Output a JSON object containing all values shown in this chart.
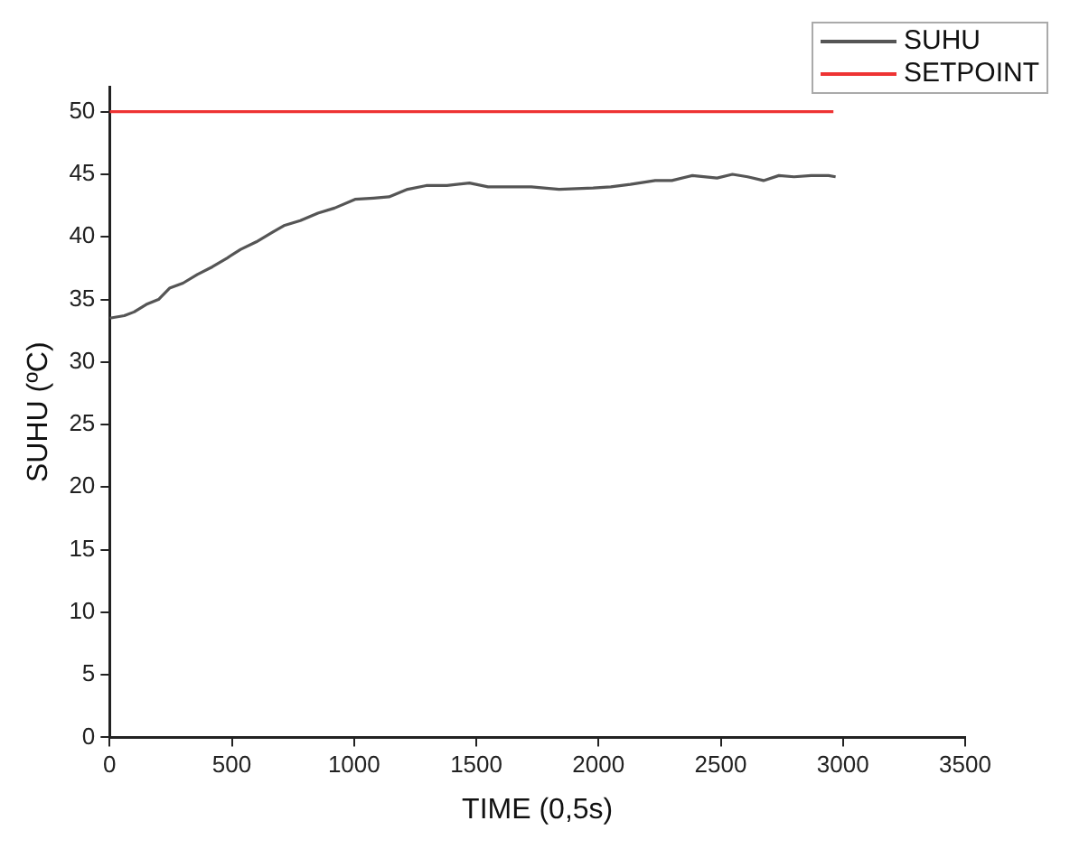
{
  "chart_data": {
    "type": "line",
    "xlabel": "TIME (0,5s)",
    "ylabel": "SUHU (ºC)",
    "xlim": [
      0,
      3500
    ],
    "xticks": [
      0,
      500,
      1000,
      1500,
      2000,
      2500,
      3000,
      3500
    ],
    "ylim": [
      0,
      52
    ],
    "yticks": [
      0,
      5,
      10,
      15,
      20,
      25,
      30,
      35,
      40,
      45,
      50
    ],
    "grid": false,
    "legend": "top right",
    "marker": "none",
    "line_style": "solid",
    "series": [
      {
        "name": "SUHU",
        "color": "#555555",
        "x": [
          0,
          60,
          100,
          150,
          200,
          245,
          300,
          359,
          420,
          480,
          536,
          600,
          660,
          713,
          780,
          852,
          920,
          1004,
          1080,
          1143,
          1219,
          1295,
          1380,
          1472,
          1548,
          1640,
          1725,
          1839,
          1978,
          2050,
          2130,
          2232,
          2300,
          2384,
          2485,
          2548,
          2610,
          2675,
          2738,
          2800,
          2870,
          2941,
          2970
        ],
        "values": [
          33.5,
          33.7,
          34.0,
          34.6,
          35.0,
          35.9,
          36.3,
          37.0,
          37.6,
          38.3,
          39.0,
          39.6,
          40.3,
          40.9,
          41.3,
          41.9,
          42.3,
          43.0,
          43.1,
          43.2,
          43.8,
          44.1,
          44.1,
          44.3,
          44.0,
          44.0,
          44.0,
          43.8,
          43.9,
          44.0,
          44.2,
          44.5,
          44.5,
          44.9,
          44.7,
          45.0,
          44.8,
          44.5,
          44.9,
          44.8,
          44.9,
          44.9,
          44.8
        ]
      },
      {
        "name": "SETPOINT",
        "color": "#ee3333",
        "x": [
          0,
          2961
        ],
        "values": [
          50,
          50
        ]
      }
    ]
  }
}
